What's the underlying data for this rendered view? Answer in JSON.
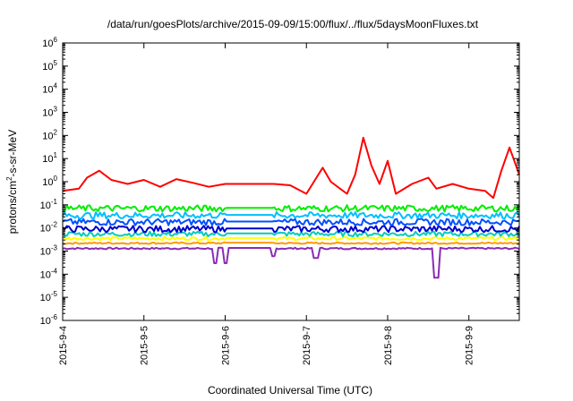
{
  "chart_data": {
    "type": "line",
    "title": "/data/run/goesPlots/archive/2015-09-09/15:00/flux/../flux/5daysMoonFluxes.txt",
    "xlabel": "Coordinated Universal Time (UTC)",
    "ylabel": {
      "base": "protons/cm",
      "sup": "2",
      "rest": "-s-sr-MeV"
    },
    "yscale": "log",
    "ylim": [
      1e-06,
      1000000.0
    ],
    "y_ticks": [
      {
        "exp": "-6"
      },
      {
        "exp": "-5"
      },
      {
        "exp": "-4"
      },
      {
        "exp": "-3"
      },
      {
        "exp": "-2"
      },
      {
        "exp": "-1"
      },
      {
        "exp": "0"
      },
      {
        "exp": "1"
      },
      {
        "exp": "2"
      },
      {
        "exp": "3"
      },
      {
        "exp": "4"
      },
      {
        "exp": "5"
      },
      {
        "exp": "6"
      }
    ],
    "x_tick_labels": [
      "2015-9-4",
      "2015-9-5",
      "2015-9-6",
      "2015-9-7",
      "2015-9-8",
      "2015-9-9"
    ],
    "x_range_days": [
      0,
      5.62
    ],
    "data_gap_days": [
      2.0,
      2.6
    ],
    "series": [
      {
        "color": "#ff0000",
        "level": 0.7,
        "amp": 1.0,
        "points": [
          [
            0,
            0.4
          ],
          [
            0.2,
            0.5
          ],
          [
            0.3,
            1.5
          ],
          [
            0.45,
            3
          ],
          [
            0.6,
            1.2
          ],
          [
            0.8,
            0.8
          ],
          [
            1.0,
            1.2
          ],
          [
            1.2,
            0.6
          ],
          [
            1.4,
            1.3
          ],
          [
            1.6,
            0.9
          ],
          [
            1.8,
            0.6
          ],
          [
            2.0,
            0.8
          ],
          [
            2.6,
            0.8
          ],
          [
            2.8,
            0.7
          ],
          [
            3.0,
            0.3
          ],
          [
            3.2,
            4.0
          ],
          [
            3.3,
            1.0
          ],
          [
            3.5,
            0.3
          ],
          [
            3.6,
            2.0
          ],
          [
            3.7,
            80
          ],
          [
            3.8,
            5.0
          ],
          [
            3.9,
            0.8
          ],
          [
            4.0,
            8.0
          ],
          [
            4.1,
            0.3
          ],
          [
            4.3,
            0.8
          ],
          [
            4.5,
            1.5
          ],
          [
            4.6,
            0.5
          ],
          [
            4.8,
            0.8
          ],
          [
            5.0,
            0.5
          ],
          [
            5.2,
            0.4
          ],
          [
            5.3,
            0.2
          ],
          [
            5.4,
            3.0
          ],
          [
            5.5,
            30
          ],
          [
            5.62,
            2.0
          ]
        ]
      },
      {
        "color": "#00ee00",
        "level": 0.07,
        "amp": 0.8
      },
      {
        "color": "#00bfff",
        "level": 0.035,
        "amp": 0.8
      },
      {
        "color": "#0050ff",
        "level": 0.018,
        "amp": 0.8
      },
      {
        "color": "#0000cc",
        "level": 0.009,
        "amp": 0.8
      },
      {
        "color": "#00ccbb",
        "level": 0.0055,
        "amp": 0.6
      },
      {
        "color": "#ffff00",
        "level": 0.0035,
        "amp": 0.4
      },
      {
        "color": "#ff9900",
        "level": 0.0022,
        "amp": 0.2
      },
      {
        "color": "#8b2bb5",
        "level": 0.0013,
        "amp": 0.2,
        "dips": [
          [
            1.88,
            0.0003
          ],
          [
            2.0,
            0.0003
          ],
          [
            2.6,
            0.0006
          ],
          [
            3.12,
            0.0005
          ],
          [
            4.6,
            7e-05
          ]
        ]
      }
    ]
  }
}
